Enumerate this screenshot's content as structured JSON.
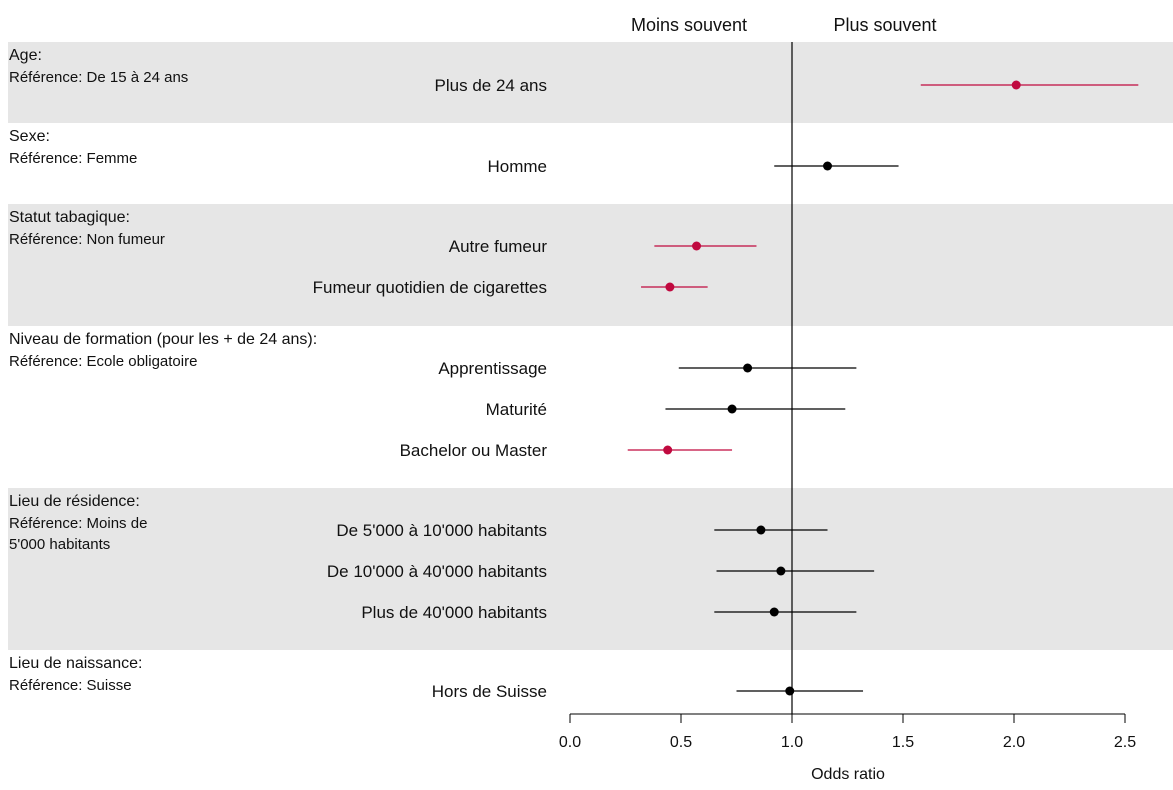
{
  "headers": {
    "left": "Moins souvent",
    "right": "Plus souvent"
  },
  "colors": {
    "significant": "#c0093f",
    "normal": "#000000",
    "band": "#e6e6e6"
  },
  "chart_data": {
    "type": "forest",
    "xlabel": "Odds ratio",
    "xlim": [
      0.0,
      2.5
    ],
    "xticks": [
      "0.0",
      "0.5",
      "1.0",
      "1.5",
      "2.0",
      "2.5"
    ],
    "reference_line": 1.0,
    "groups": [
      {
        "title": "Age:",
        "reference": [
          "Référence: De 15 à 24 ans"
        ],
        "shaded": true,
        "items": [
          {
            "label": "Plus de 24 ans",
            "or": 2.01,
            "lo": 1.58,
            "hi": 2.56,
            "significant": true
          }
        ]
      },
      {
        "title": "Sexe:",
        "reference": [
          "Référence: Femme"
        ],
        "shaded": false,
        "items": [
          {
            "label": "Homme",
            "or": 1.16,
            "lo": 0.92,
            "hi": 1.48,
            "significant": false
          }
        ]
      },
      {
        "title": "Statut tabagique:",
        "reference": [
          "Référence: Non fumeur"
        ],
        "shaded": true,
        "items": [
          {
            "label": "Autre fumeur",
            "or": 0.57,
            "lo": 0.38,
            "hi": 0.84,
            "significant": true
          },
          {
            "label": "Fumeur quotidien de cigarettes",
            "or": 0.45,
            "lo": 0.32,
            "hi": 0.62,
            "significant": true
          }
        ]
      },
      {
        "title": "Niveau de formation (pour les + de 24 ans):",
        "reference": [
          "Référence: Ecole obligatoire"
        ],
        "shaded": false,
        "items": [
          {
            "label": "Apprentissage",
            "or": 0.8,
            "lo": 0.49,
            "hi": 1.29,
            "significant": false
          },
          {
            "label": "Maturité",
            "or": 0.73,
            "lo": 0.43,
            "hi": 1.24,
            "significant": false
          },
          {
            "label": "Bachelor ou Master",
            "or": 0.44,
            "lo": 0.26,
            "hi": 0.73,
            "significant": true
          }
        ]
      },
      {
        "title": "Lieu de résidence:",
        "reference": [
          "Référence: Moins de",
          "5'000 habitants"
        ],
        "shaded": true,
        "items": [
          {
            "label": "De 5'000 à 10'000 habitants",
            "or": 0.86,
            "lo": 0.65,
            "hi": 1.16,
            "significant": false
          },
          {
            "label": "De 10'000 à 40'000 habitants",
            "or": 0.95,
            "lo": 0.66,
            "hi": 1.37,
            "significant": false
          },
          {
            "label": "Plus de 40'000 habitants",
            "or": 0.92,
            "lo": 0.65,
            "hi": 1.29,
            "significant": false
          }
        ]
      },
      {
        "title": "Lieu de naissance:",
        "reference": [
          "Référence: Suisse"
        ],
        "shaded": false,
        "items": [
          {
            "label": "Hors de Suisse",
            "or": 0.99,
            "lo": 0.75,
            "hi": 1.32,
            "significant": false
          }
        ]
      }
    ]
  }
}
